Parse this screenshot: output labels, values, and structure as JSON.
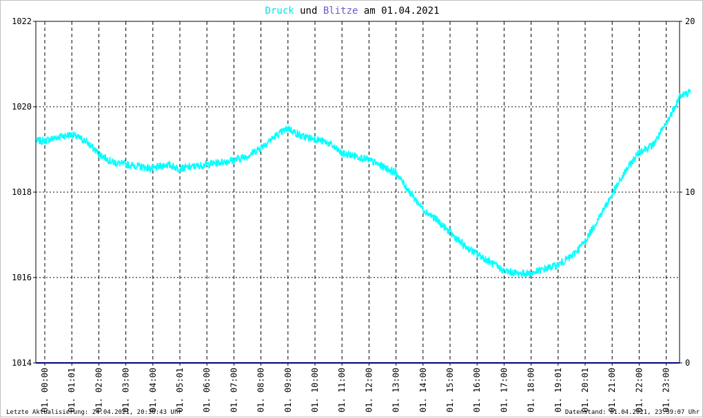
{
  "title": {
    "series1": "Druck",
    "word_und": "und",
    "series2": "Blitze",
    "word_am": "am",
    "date": "01.04.2021"
  },
  "footer": {
    "left": "Letzte Aktualisierung: 24.04.2021, 20:30:43 Uhr",
    "right": "Datenstand: 01.04.2021, 23:59:07 Uhr"
  },
  "colors": {
    "druck": "#00ffff",
    "blitze": "#6a5acd",
    "baseline": "#000080",
    "grid": "#000000"
  },
  "chart_data": {
    "type": "line",
    "x_tick_labels": [
      "01. 00:00",
      "01. 01:01",
      "01. 02:00",
      "01. 03:00",
      "01. 04:00",
      "01. 05:01",
      "01. 06:00",
      "01. 07:00",
      "01. 08:00",
      "01. 09:00",
      "01. 10:00",
      "01. 11:00",
      "01. 12:00",
      "01. 13:00",
      "01. 14:00",
      "01. 15:00",
      "01. 16:00",
      "01. 17:00",
      "01. 18:00",
      "01. 19:01",
      "01. 20:01",
      "01. 21:00",
      "01. 22:00",
      "01. 23:00"
    ],
    "y_left": {
      "min": 1014,
      "max": 1022,
      "ticks": [
        "1014",
        "1016",
        "1018",
        "1020",
        "1022"
      ]
    },
    "y_right": {
      "min": 0,
      "max": 20,
      "ticks": [
        "0",
        "10",
        "20"
      ]
    },
    "grid": true,
    "series": [
      {
        "name": "Druck",
        "axis": "left",
        "x_hours": [
          0,
          0.5,
          1,
          1.5,
          2,
          2.5,
          3,
          3.5,
          4,
          4.5,
          5,
          5.5,
          6,
          6.5,
          7,
          7.5,
          8,
          8.5,
          9,
          9.5,
          10,
          10.5,
          11,
          11.5,
          12,
          12.5,
          13,
          13.5,
          14,
          14.5,
          15,
          15.5,
          16,
          16.5,
          17,
          17.5,
          18,
          18.5,
          19,
          19.5,
          20,
          20.5,
          21,
          21.5,
          22,
          22.5,
          23,
          23.5,
          23.9
        ],
        "values": [
          1019.2,
          1019.3,
          1019.35,
          1019.2,
          1018.9,
          1018.7,
          1018.65,
          1018.6,
          1018.55,
          1018.65,
          1018.55,
          1018.6,
          1018.65,
          1018.7,
          1018.75,
          1018.85,
          1019.05,
          1019.3,
          1019.5,
          1019.3,
          1019.25,
          1019.15,
          1018.9,
          1018.85,
          1018.75,
          1018.6,
          1018.45,
          1018.0,
          1017.6,
          1017.35,
          1017.05,
          1016.75,
          1016.55,
          1016.35,
          1016.15,
          1016.1,
          1016.1,
          1016.2,
          1016.3,
          1016.5,
          1016.85,
          1017.4,
          1017.95,
          1018.5,
          1018.95,
          1019.1,
          1019.6,
          1020.25,
          1020.35
        ],
        "noise_amplitude": 0.09
      },
      {
        "name": "Blitze",
        "axis": "right",
        "x_hours": [
          0,
          24
        ],
        "values": [
          0,
          0
        ]
      }
    ]
  }
}
